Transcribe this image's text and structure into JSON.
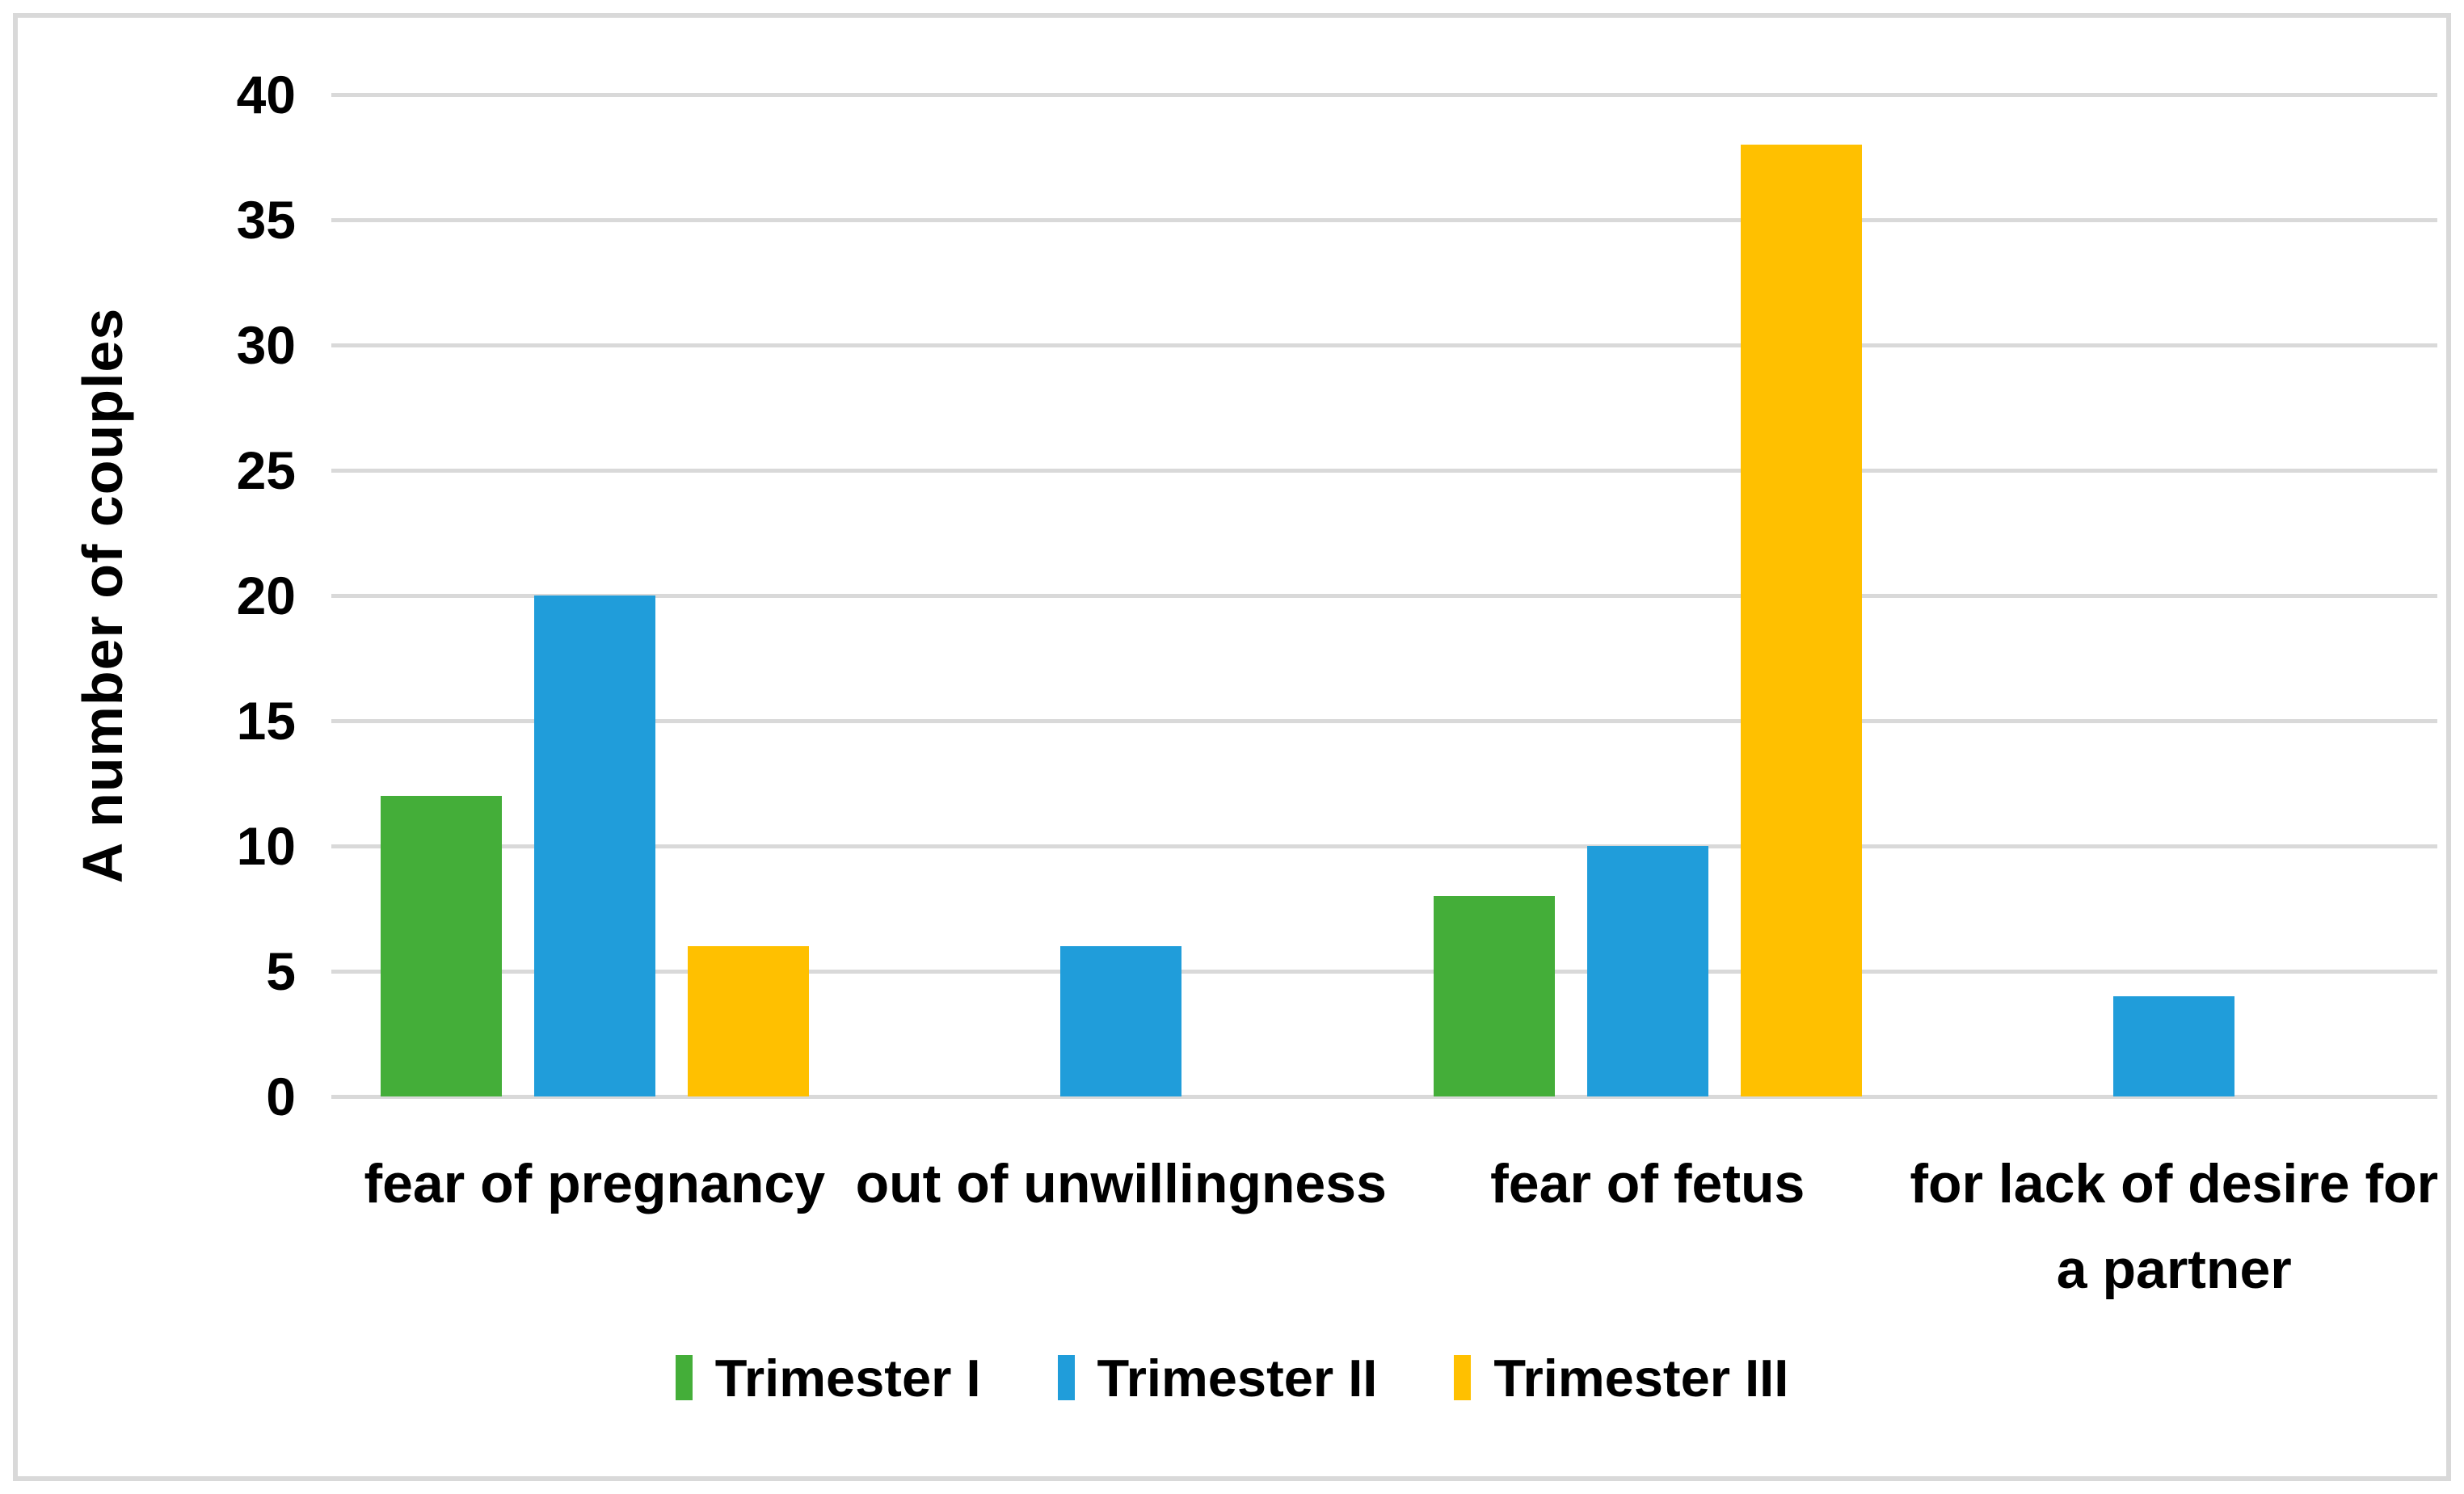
{
  "chart_data": {
    "type": "bar",
    "title": "",
    "categories": [
      "fear of pregnancy",
      "out of unwillingness",
      "fear of fetus",
      "for lack of desire for\na partner"
    ],
    "series": [
      {
        "name": "Trimester I",
        "color": "#44AE39",
        "values": [
          12,
          0,
          8,
          0
        ]
      },
      {
        "name": "Trimester II",
        "color": "#209DDA",
        "values": [
          20,
          6,
          10,
          4
        ]
      },
      {
        "name": "Trimester III",
        "color": "#FFC000",
        "values": [
          6,
          0,
          38,
          0
        ]
      }
    ],
    "xlabel": "",
    "ylabel": "A number of couples",
    "ylim": [
      0,
      40
    ],
    "y_ticks": [
      0,
      5,
      10,
      15,
      20,
      25,
      30,
      35,
      40
    ],
    "grid": "horizontal",
    "gridline_color": "#D9D9D9",
    "frame_color": "#D9D9D9",
    "legend_position": "bottom"
  }
}
